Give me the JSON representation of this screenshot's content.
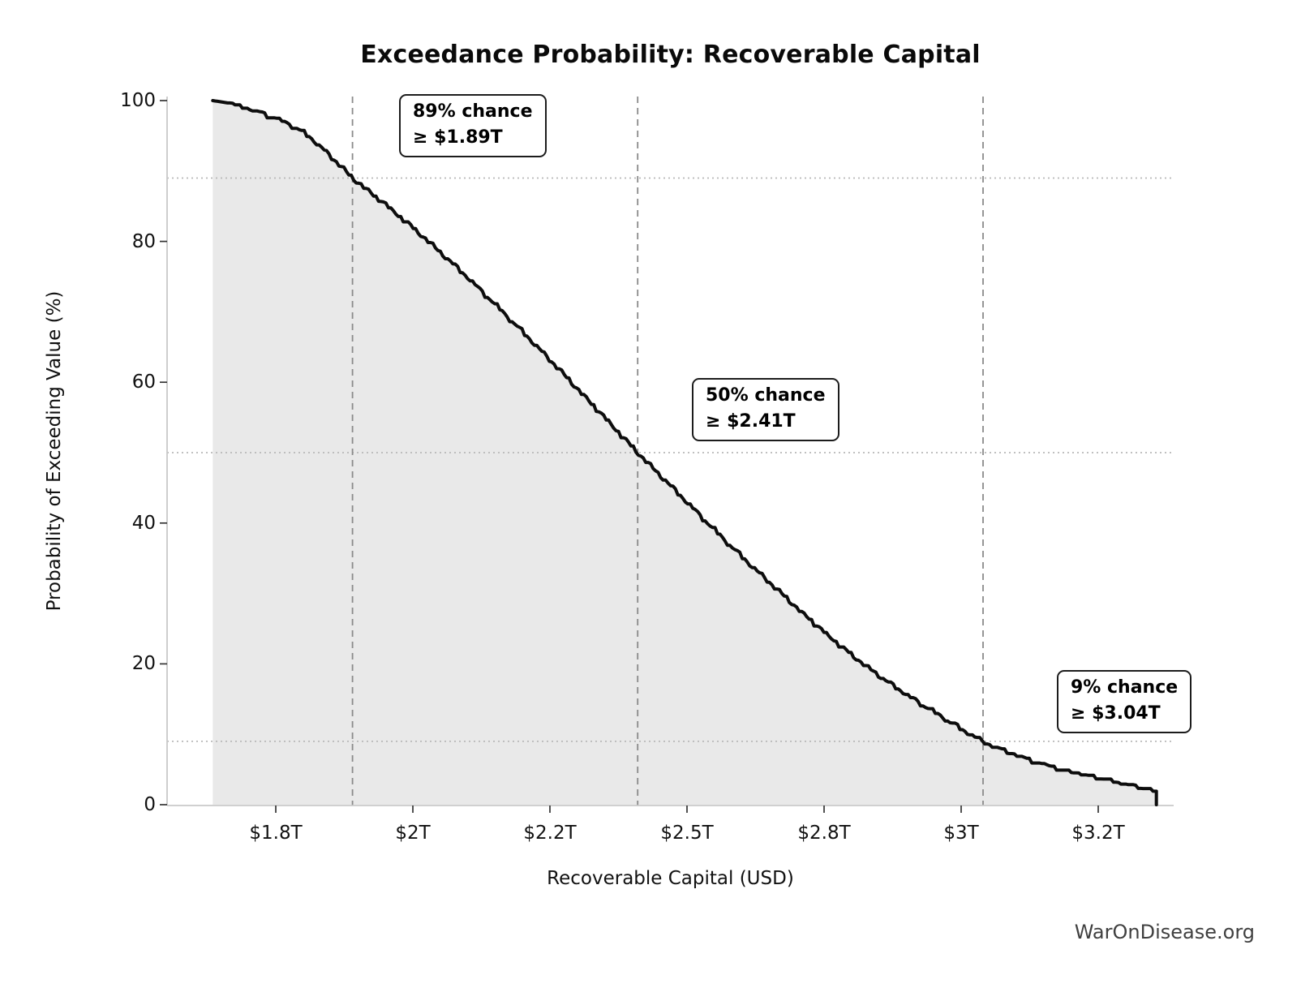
{
  "title": "Exceedance Probability: Recoverable Capital",
  "watermark": "WarOnDisease.org",
  "chart_data": {
    "type": "line",
    "subtype": "exceedance-probability-curve",
    "title": "Exceedance Probability: Recoverable Capital",
    "xlabel": "Recoverable Capital (USD)",
    "ylabel": "Probability of Exceeding Value (%)",
    "x_unit": "trillions of USD",
    "xlim": [
      1.552,
      3.387
    ],
    "ylim": [
      0,
      100.7
    ],
    "grid": {
      "h_dotted_at_percent": [
        89,
        50,
        9
      ],
      "v_dashed_at_value": [
        1.89,
        2.41,
        3.04
      ]
    },
    "x_tick_positions": [
      1.75,
      2.0,
      2.25,
      2.5,
      2.75,
      3.0,
      3.25
    ],
    "x_tick_labels": [
      "$1.8T",
      "$2T",
      "$2.2T",
      "$2.5T",
      "$2.8T",
      "$3T",
      "$3.2T"
    ],
    "y_ticks": [
      0,
      20,
      40,
      60,
      80,
      100
    ],
    "curve_points": [
      [
        1.635,
        100
      ],
      [
        1.66,
        99.7
      ],
      [
        1.69,
        99.2
      ],
      [
        1.72,
        98.4
      ],
      [
        1.75,
        97.6
      ],
      [
        1.78,
        96.5
      ],
      [
        1.81,
        95.0
      ],
      [
        1.845,
        92.5
      ],
      [
        1.89,
        89.0
      ],
      [
        1.95,
        85.3
      ],
      [
        2.0,
        82.0
      ],
      [
        2.05,
        78.5
      ],
      [
        2.1,
        74.9
      ],
      [
        2.15,
        71.1
      ],
      [
        2.2,
        67.2
      ],
      [
        2.25,
        63.2
      ],
      [
        2.3,
        59.1
      ],
      [
        2.35,
        55.0
      ],
      [
        2.41,
        50.0
      ],
      [
        2.46,
        46.1
      ],
      [
        2.51,
        42.2
      ],
      [
        2.56,
        38.3
      ],
      [
        2.61,
        34.5
      ],
      [
        2.66,
        30.9
      ],
      [
        2.71,
        27.3
      ],
      [
        2.76,
        23.9
      ],
      [
        2.81,
        20.7
      ],
      [
        2.86,
        17.8
      ],
      [
        2.91,
        15.2
      ],
      [
        2.96,
        12.8
      ],
      [
        3.0,
        10.8
      ],
      [
        3.04,
        9.0
      ],
      [
        3.09,
        7.4
      ],
      [
        3.14,
        6.1
      ],
      [
        3.19,
        5.0
      ],
      [
        3.24,
        4.1
      ],
      [
        3.28,
        3.4
      ],
      [
        3.31,
        2.9
      ],
      [
        3.34,
        2.4
      ],
      [
        3.35,
        2.1
      ]
    ],
    "curve_end_drop_x": 3.356,
    "annotations": [
      {
        "line1": "89% chance",
        "line2": "≥ $1.89T",
        "value": 1.89,
        "probability": 89
      },
      {
        "line1": "50% chance",
        "line2": "≥ $2.41T",
        "value": 2.41,
        "probability": 50
      },
      {
        "line1": "9% chance",
        "line2": "≥ $3.04T",
        "value": 3.04,
        "probability": 9
      }
    ],
    "colors": {
      "curve": "#0d0d0d",
      "fill": "#e9e9e9",
      "vline": "#8a8a8a",
      "hline": "#b8b8b8",
      "spine": "#c9c9c9",
      "tick_mark": "#333333",
      "text": "#111111",
      "watermark": "#404040",
      "background": "#ffffff"
    }
  }
}
